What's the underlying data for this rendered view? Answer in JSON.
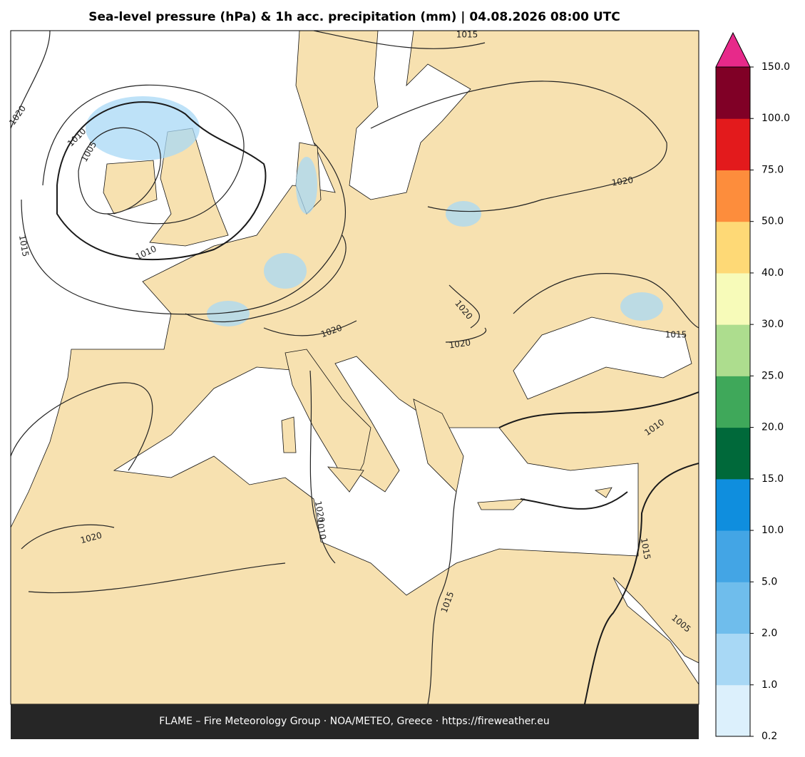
{
  "header": {
    "title": "Sea-level pressure (hPa) & 1h acc. precipitation (mm)  |  04.08.2026 08:00 UTC"
  },
  "isobars": [
    "1015",
    "1020",
    "1010",
    "1005",
    "1020",
    "1015",
    "1010",
    "1020",
    "1020",
    "1020",
    "1020",
    "1015",
    "1010",
    "1020",
    "1015",
    "1015",
    "1010",
    "1005"
  ],
  "colorbar": {
    "ticks": [
      "0.2",
      "1.0",
      "2.0",
      "5.0",
      "10.0",
      "15.0",
      "20.0",
      "25.0",
      "30.0",
      "40.0",
      "50.0",
      "75.0",
      "100.0",
      "150.0"
    ],
    "colors": [
      "#dcf0fc",
      "#a8d8f5",
      "#6fbdec",
      "#43a5e5",
      "#0f8ede",
      "#00693a",
      "#3fa85a",
      "#addd8e",
      "#f7fbb9",
      "#fed976",
      "#fd8d3c",
      "#e31a1c",
      "#800026"
    ],
    "extend_color": "#e7298a"
  },
  "footer": "FLAME – Fire Meteorology Group · NOA/METEO, Greece · https://fireweather.eu"
}
